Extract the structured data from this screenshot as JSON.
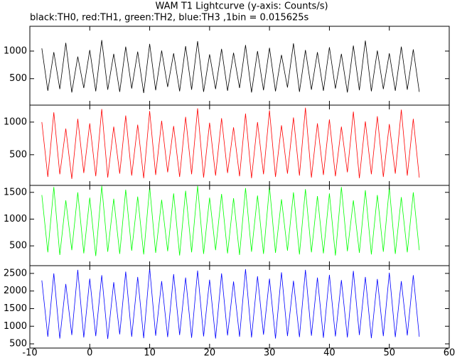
{
  "chart_data": {
    "type": "line",
    "title": "WAM T1 Lightcurve (y-axis: Counts/s)",
    "subtitle": "black:TH0, red:TH1, green:TH2, blue:TH3 ,1bin = 0.015625s",
    "x": [
      -8,
      -7,
      -6,
      -5,
      -4,
      -3,
      -2,
      -1,
      0,
      1,
      2,
      3,
      4,
      5,
      6,
      7,
      8,
      9,
      10,
      11,
      12,
      13,
      14,
      15,
      16,
      17,
      18,
      19,
      20,
      21,
      22,
      23,
      24,
      25,
      26,
      27,
      28,
      29,
      30,
      31,
      32,
      33,
      34,
      35,
      36,
      37,
      38,
      39,
      40,
      41,
      42,
      43,
      44,
      45,
      46,
      47,
      48,
      49,
      50,
      51,
      52,
      53,
      54,
      55
    ],
    "xlim": [
      -10,
      60
    ],
    "xticks": [
      -10,
      0,
      10,
      20,
      30,
      40,
      50,
      60
    ],
    "series": [
      {
        "color": "#000000",
        "ylim": [
          20,
          1450
        ],
        "yticks": [
          500,
          1000
        ],
        "values": [
          1050,
          280,
          980,
          310,
          1150,
          250,
          900,
          330,
          1020,
          270,
          1200,
          300,
          950,
          260,
          1080,
          320,
          990,
          240,
          1130,
          290,
          1010,
          350,
          960,
          270,
          1090,
          300,
          1180,
          260,
          940,
          310,
          1040,
          280,
          970,
          330,
          1110,
          250,
          1000,
          290,
          1060,
          270,
          930,
          340,
          1140,
          260,
          1020,
          300,
          980,
          280,
          1070,
          320,
          950,
          250,
          1100,
          290,
          1190,
          270,
          1010,
          310,
          960,
          280,
          1080,
          300,
          1030,
          260
        ]
      },
      {
        "color": "#ff0000",
        "ylim": [
          30,
          1260
        ],
        "yticks": [
          500,
          1000
        ],
        "values": [
          1000,
          160,
          1150,
          200,
          900,
          130,
          1050,
          220,
          980,
          170,
          1200,
          150,
          930,
          210,
          1100,
          180,
          960,
          140,
          1170,
          190,
          1020,
          230,
          940,
          160,
          1080,
          200,
          1210,
          150,
          990,
          180,
          1060,
          220,
          920,
          170,
          1130,
          140,
          1000,
          200,
          1180,
          160,
          950,
          210,
          1070,
          180,
          1220,
          150,
          980,
          190,
          1040,
          170,
          930,
          230,
          1160,
          140,
          1010,
          200,
          1090,
          160,
          970,
          210,
          1190,
          180,
          1050,
          150
        ]
      },
      {
        "color": "#00ff00",
        "ylim": [
          130,
          1630
        ],
        "yticks": [
          500,
          1000,
          1500
        ],
        "values": [
          1450,
          380,
          1600,
          330,
          1350,
          420,
          1500,
          360,
          1400,
          310,
          1620,
          390,
          1380,
          350,
          1550,
          410,
          1420,
          340,
          1600,
          370,
          1360,
          400,
          1480,
          320,
          1530,
          380,
          1620,
          350,
          1400,
          420,
          1470,
          360,
          1390,
          330,
          1580,
          390,
          1440,
          350,
          1610,
          370,
          1370,
          410,
          1500,
          340,
          1560,
          380,
          1430,
          360,
          1480,
          320,
          1600,
          400,
          1350,
          370,
          1540,
          340,
          1450,
          390,
          1590,
          350,
          1410,
          380,
          1500,
          420
        ]
      },
      {
        "color": "#0000ff",
        "ylim": [
          380,
          2720
        ],
        "yticks": [
          500,
          1000,
          1500,
          2000,
          2500
        ],
        "values": [
          2300,
          700,
          2500,
          650,
          2200,
          750,
          2600,
          680,
          2350,
          720,
          2450,
          640,
          2250,
          770,
          2550,
          700,
          2400,
          660,
          2650,
          730,
          2280,
          690,
          2480,
          750,
          2380,
          670,
          2580,
          710,
          2320,
          650,
          2500,
          740,
          2270,
          700,
          2620,
          680,
          2420,
          760,
          2350,
          650,
          2530,
          720,
          2290,
          690,
          2600,
          730,
          2380,
          670,
          2460,
          710,
          2310,
          680,
          2570,
          750,
          2400,
          660,
          2340,
          720,
          2520,
          690,
          2280,
          740,
          2450,
          700
        ]
      }
    ]
  }
}
